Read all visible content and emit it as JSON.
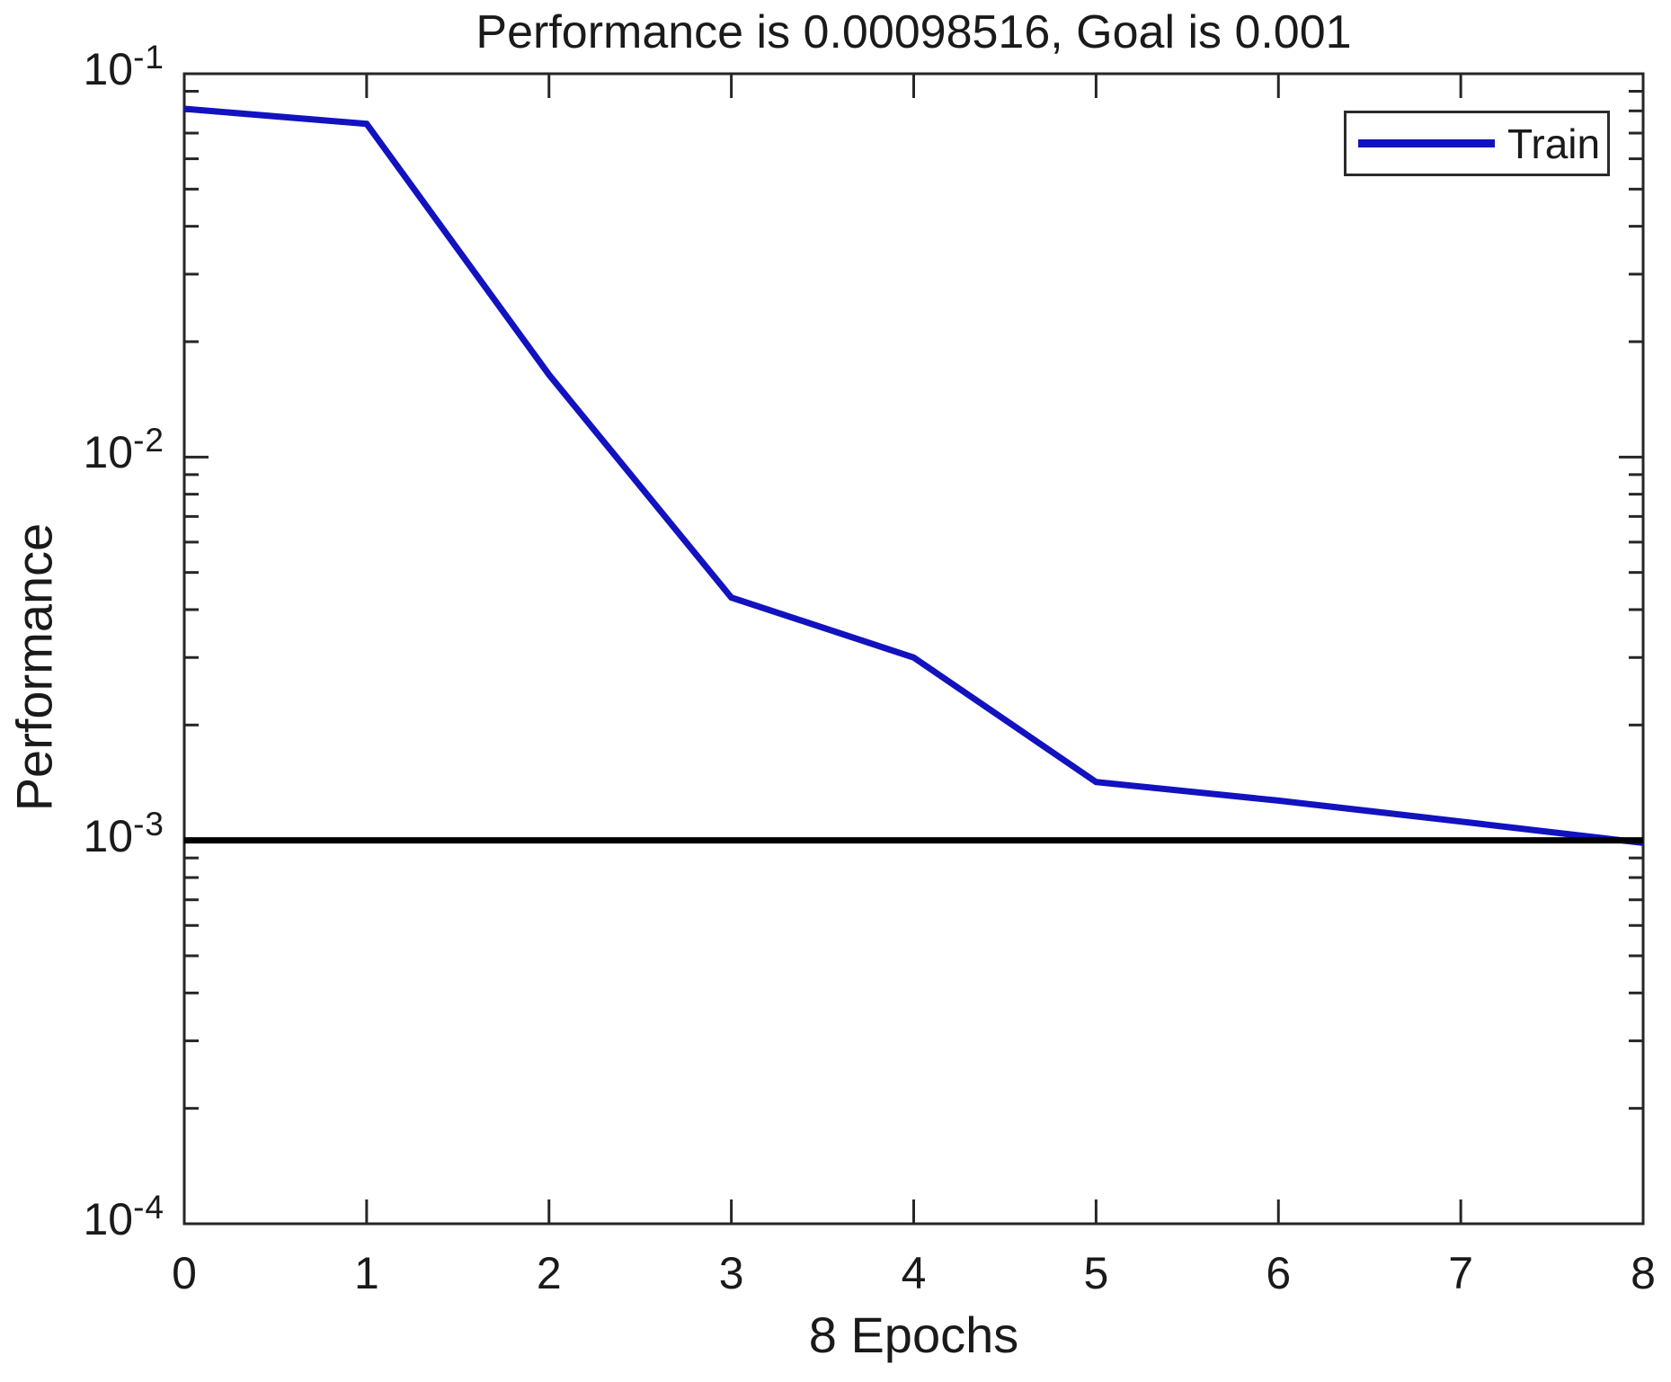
{
  "chart_data": {
    "type": "line",
    "title": "Performance is 0.00098516, Goal is 0.001",
    "xlabel": "8 Epochs",
    "ylabel": "Performance",
    "yscale": "log",
    "grid": false,
    "xlim": [
      0,
      8
    ],
    "ylim": [
      0.0001,
      0.1
    ],
    "x": [
      0,
      1,
      2,
      3,
      4,
      5,
      6,
      7,
      8
    ],
    "series": [
      {
        "name": "Train",
        "color": "#1212c0",
        "values": [
          0.081,
          0.074,
          0.0164,
          0.0043,
          0.003,
          0.00142,
          0.00127,
          0.00112,
          0.00098516
        ]
      }
    ],
    "goal": {
      "value": 0.001,
      "color": "#000000"
    },
    "final_performance": 0.00098516,
    "x_tick_labels": [
      "0",
      "1",
      "2",
      "3",
      "4",
      "5",
      "6",
      "7",
      "8"
    ],
    "y_tick_exponents": [
      -1,
      -2,
      -3,
      -4
    ],
    "legend": {
      "position": "top-right",
      "entries": [
        {
          "label": "Train",
          "color": "#1212c0"
        }
      ]
    }
  },
  "colors": {
    "axis": "#262626",
    "text": "#1a1a1a",
    "background": "#ffffff"
  }
}
